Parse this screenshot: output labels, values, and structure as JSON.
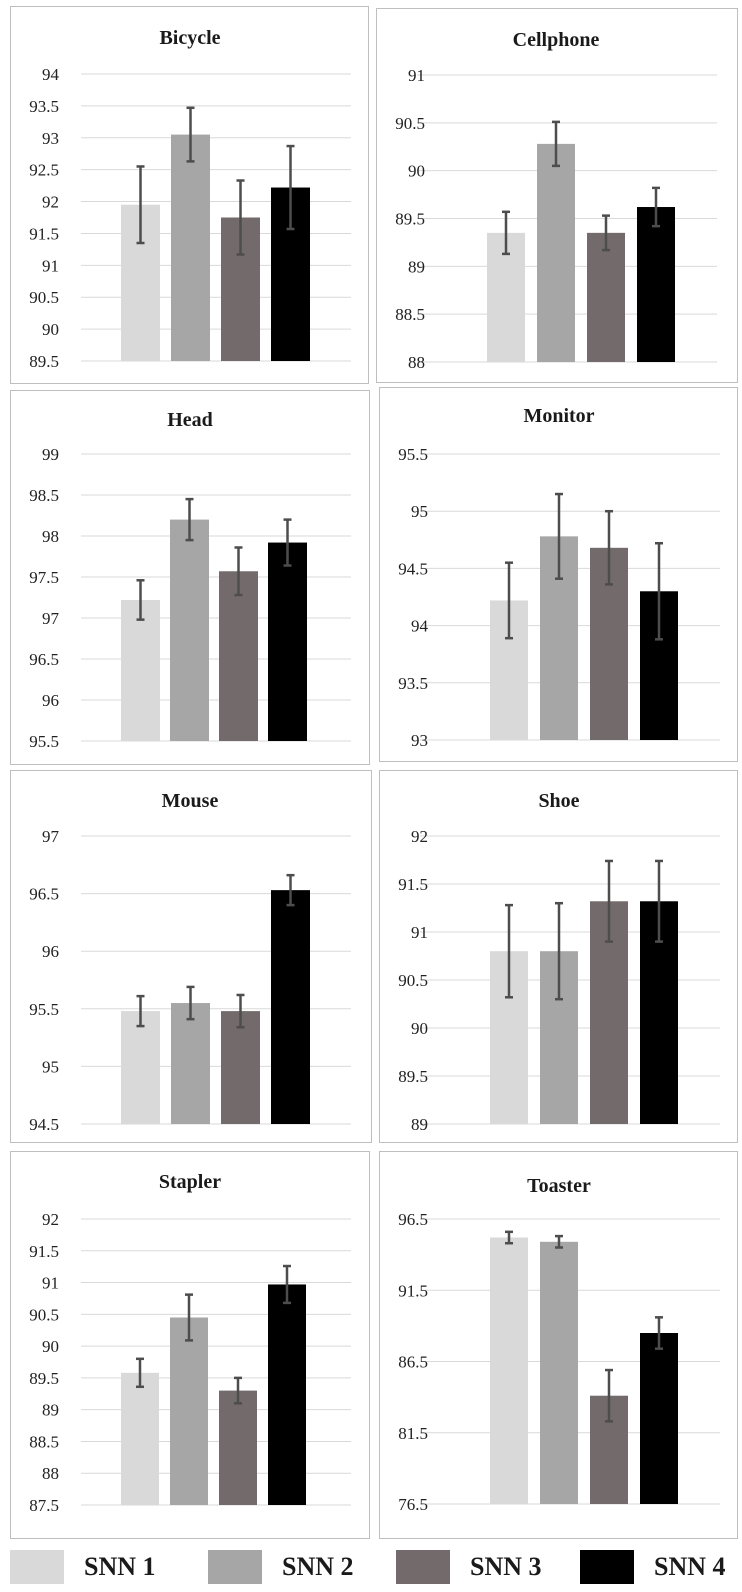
{
  "legend": [
    {
      "label": "SNN 1",
      "color": "#d9d9d9"
    },
    {
      "label": "SNN 2",
      "color": "#a6a6a6"
    },
    {
      "label": "SNN 3",
      "color": "#736b6b"
    },
    {
      "label": "SNN 4",
      "color": "#000000"
    }
  ],
  "chart_data": [
    {
      "type": "bar",
      "title": "Bicycle",
      "categories": [
        "SNN 1",
        "SNN 2",
        "SNN 3",
        "SNN 4"
      ],
      "values": [
        91.95,
        93.05,
        91.75,
        92.22
      ],
      "errors": [
        0.6,
        0.42,
        0.58,
        0.65
      ],
      "ylim": [
        89.5,
        94
      ],
      "yticks": [
        "94",
        "93.5",
        "93",
        "92.5",
        "92",
        "91.5",
        "91",
        "90.5",
        "90",
        "89.5"
      ],
      "grid": true
    },
    {
      "type": "bar",
      "title": "Cellphone",
      "categories": [
        "SNN 1",
        "SNN 2",
        "SNN 3",
        "SNN 4"
      ],
      "values": [
        89.35,
        90.28,
        89.35,
        89.62
      ],
      "errors": [
        0.22,
        0.23,
        0.18,
        0.2
      ],
      "ylim": [
        88,
        91
      ],
      "yticks": [
        "91",
        "90.5",
        "90",
        "89.5",
        "89",
        "88.5",
        "88"
      ],
      "grid": true
    },
    {
      "type": "bar",
      "title": "Head",
      "categories": [
        "SNN 1",
        "SNN 2",
        "SNN 3",
        "SNN 4"
      ],
      "values": [
        97.22,
        98.2,
        97.57,
        97.92
      ],
      "errors": [
        0.24,
        0.25,
        0.29,
        0.28
      ],
      "ylim": [
        95.5,
        99
      ],
      "yticks": [
        "99",
        "98.5",
        "98",
        "97.5",
        "97",
        "96.5",
        "96",
        "95.5"
      ],
      "grid": true
    },
    {
      "type": "bar",
      "title": "Monitor",
      "categories": [
        "SNN 1",
        "SNN 2",
        "SNN 3",
        "SNN 4"
      ],
      "values": [
        94.22,
        94.78,
        94.68,
        94.3
      ],
      "errors": [
        0.33,
        0.37,
        0.32,
        0.42
      ],
      "ylim": [
        93,
        95.5
      ],
      "yticks": [
        "95.5",
        "95",
        "94.5",
        "94",
        "93.5",
        "93"
      ],
      "grid": true
    },
    {
      "type": "bar",
      "title": "Mouse",
      "categories": [
        "SNN 1",
        "SNN 2",
        "SNN 3",
        "SNN 4"
      ],
      "values": [
        95.48,
        95.55,
        95.48,
        96.53
      ],
      "errors": [
        0.13,
        0.14,
        0.14,
        0.13
      ],
      "ylim": [
        94.5,
        97
      ],
      "yticks": [
        "97",
        "96.5",
        "96",
        "95.5",
        "95",
        "94.5"
      ],
      "grid": true
    },
    {
      "type": "bar",
      "title": "Shoe",
      "categories": [
        "SNN 1",
        "SNN 2",
        "SNN 3",
        "SNN 4"
      ],
      "values": [
        90.8,
        90.8,
        91.32,
        91.32
      ],
      "errors": [
        0.48,
        0.5,
        0.42,
        0.42
      ],
      "ylim": [
        89,
        92
      ],
      "yticks": [
        "92",
        "91.5",
        "91",
        "90.5",
        "90",
        "89.5",
        "89"
      ],
      "grid": true
    },
    {
      "type": "bar",
      "title": "Stapler",
      "categories": [
        "SNN 1",
        "SNN 2",
        "SNN 3",
        "SNN 4"
      ],
      "values": [
        89.58,
        90.45,
        89.3,
        90.97
      ],
      "errors": [
        0.22,
        0.36,
        0.2,
        0.29
      ],
      "ylim": [
        87.5,
        92
      ],
      "yticks": [
        "92",
        "91.5",
        "91",
        "90.5",
        "90",
        "89.5",
        "89",
        "88.5",
        "88",
        "87.5"
      ],
      "grid": true
    },
    {
      "type": "bar",
      "title": "Toaster",
      "categories": [
        "SNN 1",
        "SNN 2",
        "SNN 3",
        "SNN 4"
      ],
      "values": [
        95.2,
        94.9,
        84.1,
        88.5
      ],
      "errors": [
        0.4,
        0.4,
        1.8,
        1.1
      ],
      "ylim": [
        76.5,
        96.5
      ],
      "yticks": [
        "96.5",
        "91.5",
        "86.5",
        "81.5",
        "76.5"
      ],
      "grid": true
    }
  ]
}
